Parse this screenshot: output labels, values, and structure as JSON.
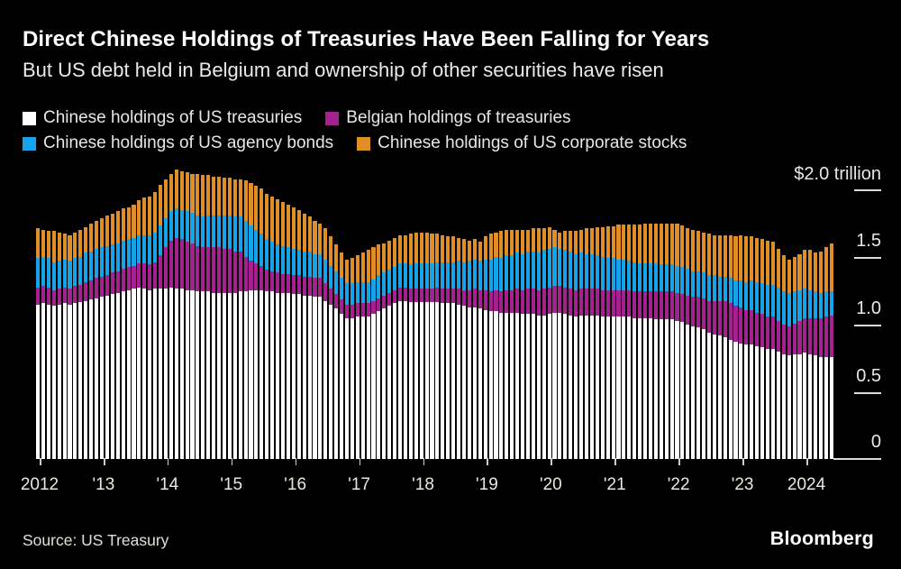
{
  "header": {
    "title": "Direct Chinese Holdings of Treasuries Have Been Falling for Years",
    "subtitle": "But US debt held in Belgium and ownership of other securities have risen"
  },
  "footer": {
    "source": "Source: US Treasury",
    "brand": "Bloomberg"
  },
  "chart_data": {
    "type": "bar",
    "stacked": true,
    "unit": "USD trillions",
    "start": "2012-01",
    "frequency": "monthly",
    "grid": false,
    "legend_position": "top-left",
    "x_tick_labels": [
      "2012",
      "'13",
      "'14",
      "'15",
      "'16",
      "'17",
      "'18",
      "'19",
      "'20",
      "'21",
      "'22",
      "'23",
      "2024"
    ],
    "y_axis": {
      "labels": [
        "$2.0 trillion",
        "1.5",
        "1.0",
        "0.5",
        "0"
      ],
      "values": [
        2.0,
        1.5,
        1.0,
        0.5,
        0
      ],
      "ylim": [
        0,
        2.25
      ]
    },
    "series": [
      {
        "name": "Chinese holdings of US treasuries",
        "color": "#ffffff",
        "values": [
          1.15,
          1.16,
          1.15,
          1.14,
          1.15,
          1.16,
          1.15,
          1.16,
          1.17,
          1.18,
          1.19,
          1.2,
          1.21,
          1.22,
          1.23,
          1.24,
          1.25,
          1.26,
          1.27,
          1.28,
          1.27,
          1.26,
          1.27,
          1.27,
          1.27,
          1.28,
          1.27,
          1.27,
          1.26,
          1.26,
          1.25,
          1.25,
          1.25,
          1.24,
          1.24,
          1.24,
          1.24,
          1.24,
          1.25,
          1.25,
          1.26,
          1.26,
          1.26,
          1.25,
          1.25,
          1.24,
          1.24,
          1.24,
          1.23,
          1.23,
          1.22,
          1.22,
          1.21,
          1.21,
          1.18,
          1.15,
          1.12,
          1.08,
          1.05,
          1.05,
          1.06,
          1.06,
          1.06,
          1.08,
          1.1,
          1.12,
          1.14,
          1.16,
          1.18,
          1.18,
          1.17,
          1.17,
          1.17,
          1.17,
          1.17,
          1.17,
          1.16,
          1.16,
          1.16,
          1.15,
          1.14,
          1.13,
          1.13,
          1.12,
          1.11,
          1.1,
          1.1,
          1.09,
          1.09,
          1.09,
          1.09,
          1.08,
          1.08,
          1.08,
          1.07,
          1.07,
          1.08,
          1.09,
          1.09,
          1.08,
          1.07,
          1.06,
          1.07,
          1.07,
          1.07,
          1.07,
          1.06,
          1.06,
          1.06,
          1.06,
          1.06,
          1.06,
          1.05,
          1.05,
          1.05,
          1.05,
          1.04,
          1.04,
          1.04,
          1.04,
          1.03,
          1.02,
          1.0,
          0.99,
          0.98,
          0.97,
          0.94,
          0.93,
          0.92,
          0.91,
          0.89,
          0.87,
          0.86,
          0.85,
          0.85,
          0.84,
          0.83,
          0.82,
          0.82,
          0.8,
          0.78,
          0.77,
          0.78,
          0.78,
          0.79,
          0.78,
          0.77,
          0.76,
          0.76,
          0.76
        ]
      },
      {
        "name": "Belgian holdings of treasuries",
        "color": "#a4218f",
        "values": [
          0.13,
          0.13,
          0.13,
          0.12,
          0.12,
          0.12,
          0.12,
          0.13,
          0.13,
          0.14,
          0.14,
          0.15,
          0.15,
          0.15,
          0.16,
          0.16,
          0.17,
          0.17,
          0.17,
          0.18,
          0.19,
          0.19,
          0.2,
          0.25,
          0.31,
          0.35,
          0.38,
          0.37,
          0.36,
          0.35,
          0.34,
          0.33,
          0.33,
          0.34,
          0.34,
          0.33,
          0.33,
          0.31,
          0.3,
          0.26,
          0.22,
          0.2,
          0.18,
          0.16,
          0.15,
          0.15,
          0.14,
          0.14,
          0.14,
          0.14,
          0.14,
          0.14,
          0.14,
          0.14,
          0.13,
          0.12,
          0.11,
          0.11,
          0.1,
          0.1,
          0.1,
          0.1,
          0.1,
          0.1,
          0.1,
          0.1,
          0.1,
          0.1,
          0.1,
          0.1,
          0.1,
          0.1,
          0.1,
          0.1,
          0.1,
          0.11,
          0.11,
          0.11,
          0.11,
          0.12,
          0.12,
          0.13,
          0.14,
          0.14,
          0.15,
          0.15,
          0.16,
          0.16,
          0.17,
          0.17,
          0.18,
          0.18,
          0.19,
          0.19,
          0.19,
          0.2,
          0.2,
          0.2,
          0.2,
          0.2,
          0.2,
          0.2,
          0.2,
          0.2,
          0.2,
          0.2,
          0.2,
          0.2,
          0.2,
          0.2,
          0.2,
          0.2,
          0.2,
          0.2,
          0.2,
          0.2,
          0.21,
          0.21,
          0.21,
          0.21,
          0.21,
          0.21,
          0.22,
          0.22,
          0.23,
          0.23,
          0.24,
          0.25,
          0.26,
          0.27,
          0.27,
          0.27,
          0.27,
          0.26,
          0.26,
          0.25,
          0.25,
          0.24,
          0.24,
          0.23,
          0.22,
          0.22,
          0.23,
          0.25,
          0.26,
          0.27,
          0.28,
          0.29,
          0.3,
          0.31
        ]
      },
      {
        "name": "Chinese holdings of US agency bonds",
        "color": "#17a3e8",
        "values": [
          0.22,
          0.22,
          0.22,
          0.21,
          0.21,
          0.21,
          0.21,
          0.21,
          0.21,
          0.22,
          0.22,
          0.22,
          0.22,
          0.22,
          0.21,
          0.21,
          0.21,
          0.21,
          0.21,
          0.21,
          0.21,
          0.22,
          0.22,
          0.22,
          0.22,
          0.22,
          0.22,
          0.22,
          0.23,
          0.23,
          0.23,
          0.23,
          0.24,
          0.24,
          0.24,
          0.25,
          0.25,
          0.26,
          0.26,
          0.27,
          0.26,
          0.25,
          0.24,
          0.23,
          0.22,
          0.21,
          0.21,
          0.2,
          0.2,
          0.19,
          0.19,
          0.19,
          0.18,
          0.18,
          0.18,
          0.17,
          0.17,
          0.16,
          0.16,
          0.16,
          0.16,
          0.16,
          0.16,
          0.16,
          0.17,
          0.17,
          0.17,
          0.17,
          0.18,
          0.18,
          0.18,
          0.19,
          0.19,
          0.19,
          0.19,
          0.19,
          0.2,
          0.2,
          0.2,
          0.21,
          0.21,
          0.22,
          0.22,
          0.22,
          0.23,
          0.24,
          0.25,
          0.25,
          0.26,
          0.26,
          0.27,
          0.27,
          0.28,
          0.28,
          0.28,
          0.29,
          0.29,
          0.29,
          0.28,
          0.28,
          0.28,
          0.27,
          0.27,
          0.26,
          0.26,
          0.25,
          0.25,
          0.24,
          0.24,
          0.23,
          0.23,
          0.22,
          0.22,
          0.21,
          0.21,
          0.21,
          0.21,
          0.2,
          0.2,
          0.2,
          0.2,
          0.2,
          0.2,
          0.19,
          0.19,
          0.19,
          0.19,
          0.19,
          0.18,
          0.18,
          0.19,
          0.19,
          0.2,
          0.21,
          0.22,
          0.23,
          0.23,
          0.24,
          0.24,
          0.25,
          0.25,
          0.25,
          0.24,
          0.23,
          0.22,
          0.21,
          0.2,
          0.19,
          0.19,
          0.18
        ]
      },
      {
        "name": "Chinese holdings of US corporate stocks",
        "color": "#e08e28",
        "values": [
          0.22,
          0.2,
          0.2,
          0.23,
          0.21,
          0.19,
          0.19,
          0.19,
          0.2,
          0.19,
          0.21,
          0.21,
          0.22,
          0.23,
          0.23,
          0.24,
          0.24,
          0.24,
          0.25,
          0.26,
          0.28,
          0.29,
          0.3,
          0.31,
          0.29,
          0.28,
          0.29,
          0.29,
          0.29,
          0.29,
          0.31,
          0.31,
          0.3,
          0.29,
          0.29,
          0.28,
          0.28,
          0.28,
          0.28,
          0.3,
          0.32,
          0.33,
          0.34,
          0.34,
          0.34,
          0.34,
          0.33,
          0.32,
          0.31,
          0.3,
          0.28,
          0.26,
          0.25,
          0.23,
          0.23,
          0.22,
          0.2,
          0.19,
          0.18,
          0.19,
          0.2,
          0.22,
          0.24,
          0.24,
          0.23,
          0.22,
          0.22,
          0.22,
          0.21,
          0.21,
          0.23,
          0.23,
          0.23,
          0.23,
          0.22,
          0.21,
          0.2,
          0.19,
          0.19,
          0.17,
          0.17,
          0.15,
          0.15,
          0.14,
          0.17,
          0.19,
          0.18,
          0.2,
          0.19,
          0.19,
          0.17,
          0.18,
          0.16,
          0.17,
          0.18,
          0.16,
          0.16,
          0.13,
          0.12,
          0.14,
          0.15,
          0.17,
          0.17,
          0.19,
          0.19,
          0.21,
          0.22,
          0.24,
          0.24,
          0.26,
          0.26,
          0.27,
          0.28,
          0.29,
          0.3,
          0.3,
          0.3,
          0.31,
          0.31,
          0.31,
          0.32,
          0.31,
          0.3,
          0.31,
          0.3,
          0.3,
          0.31,
          0.3,
          0.31,
          0.31,
          0.32,
          0.33,
          0.34,
          0.34,
          0.33,
          0.33,
          0.33,
          0.33,
          0.32,
          0.29,
          0.27,
          0.25,
          0.26,
          0.27,
          0.29,
          0.3,
          0.29,
          0.31,
          0.33,
          0.36
        ]
      }
    ]
  }
}
